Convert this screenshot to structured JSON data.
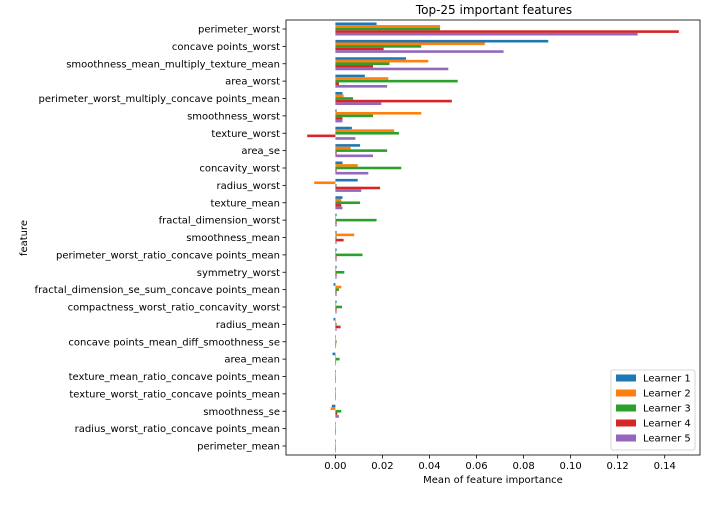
{
  "chart_data": {
    "type": "bar",
    "orientation": "horizontal",
    "title": "Top-25 important features",
    "xlabel": "Mean of feature importance",
    "ylabel": "feature",
    "xlim": [
      -0.021,
      0.155
    ],
    "xticks": [
      0.0,
      0.02,
      0.04,
      0.06,
      0.08,
      0.1,
      0.12,
      0.14
    ],
    "xtick_labels": [
      "0.00",
      "0.02",
      "0.04",
      "0.06",
      "0.08",
      "0.10",
      "0.12",
      "0.14"
    ],
    "grid": false,
    "legend_position": "lower-right",
    "colors": [
      "#1f77b4",
      "#ff7f0e",
      "#2ca02c",
      "#d62728",
      "#9467bd"
    ],
    "categories": [
      "perimeter_worst",
      "concave points_worst",
      "smoothness_mean_multiply_texture_mean",
      "area_worst",
      "perimeter_worst_multiply_concave points_mean",
      "smoothness_worst",
      "texture_worst",
      "area_se",
      "concavity_worst",
      "radius_worst",
      "texture_mean",
      "fractal_dimension_worst",
      "smoothness_mean",
      "perimeter_worst_ratio_concave points_mean",
      "symmetry_worst",
      "fractal_dimension_se_sum_concave points_mean",
      "compactness_worst_ratio_concavity_worst",
      "radius_mean",
      "concave points_mean_diff_smoothness_se",
      "area_mean",
      "texture_mean_ratio_concave points_mean",
      "texture_worst_ratio_concave points_mean",
      "smoothness_se",
      "radius_worst_ratio_concave points_mean",
      "perimeter_mean"
    ],
    "series": [
      {
        "name": "Learner 1",
        "values": [
          0.0175,
          0.0905,
          0.03,
          0.0125,
          0.003,
          0.0005,
          0.007,
          0.0105,
          0.003,
          0.0095,
          0.003,
          0.0005,
          0.0005,
          0.0005,
          0.0005,
          -0.0008,
          0.0005,
          -0.0008,
          0.0002,
          -0.0012,
          0.0002,
          0.0002,
          -0.0015,
          0.0001,
          0.0001
        ]
      },
      {
        "name": "Learner 2",
        "values": [
          0.0445,
          0.0635,
          0.0395,
          0.0225,
          0.0035,
          0.0365,
          0.025,
          0.0065,
          0.0095,
          -0.009,
          0.0025,
          0.0002,
          0.008,
          0.0003,
          0.0003,
          0.0025,
          0.0003,
          0.0003,
          0.0003,
          0.0002,
          0.0001,
          0.0001,
          -0.002,
          0.0001,
          0.0001
        ]
      },
      {
        "name": "Learner 3",
        "values": [
          0.0445,
          0.0365,
          0.023,
          0.052,
          0.0075,
          0.016,
          0.027,
          0.022,
          0.028,
          0.0005,
          0.0105,
          0.0175,
          0.0005,
          0.0115,
          0.0038,
          0.0015,
          0.0028,
          0.0005,
          0.0005,
          0.0018,
          0.0002,
          0.0002,
          0.0025,
          0.0001,
          0.0001
        ]
      },
      {
        "name": "Learner 4",
        "values": [
          0.146,
          0.0205,
          0.016,
          0.0015,
          0.0495,
          0.003,
          -0.012,
          0.0005,
          0.0005,
          0.019,
          0.0025,
          0.0005,
          0.0035,
          0.0005,
          0.0005,
          0.0005,
          0.0005,
          0.0022,
          0.0003,
          0.0003,
          0.0001,
          0.0001,
          0.0008,
          0.0001,
          0.0001
        ]
      },
      {
        "name": "Learner 5",
        "values": [
          0.1285,
          0.0715,
          0.048,
          0.022,
          0.0195,
          0.003,
          0.0085,
          0.016,
          0.014,
          0.011,
          0.003,
          0.0005,
          0.0005,
          0.0005,
          0.0005,
          0.0005,
          0.0005,
          0.0005,
          0.0002,
          0.0002,
          0.0001,
          0.0001,
          0.0015,
          0.0001,
          0.0001
        ]
      }
    ]
  }
}
